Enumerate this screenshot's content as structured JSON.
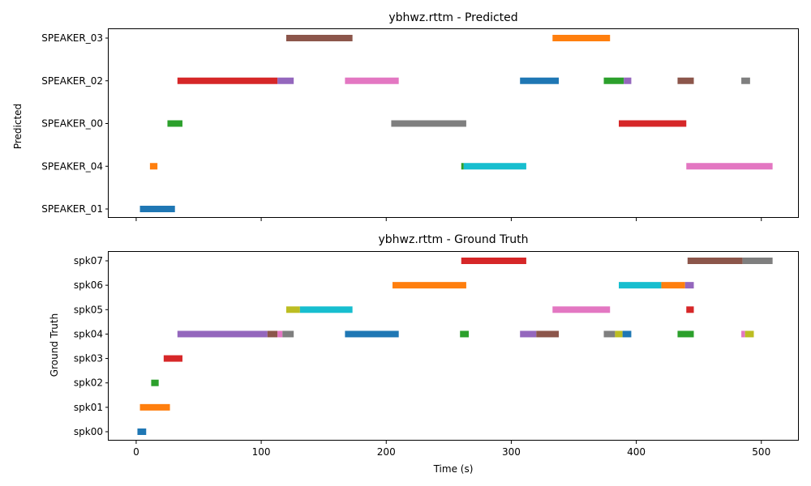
{
  "chart_data": [
    {
      "type": "timeline",
      "title": "ybhwz.rttm - Predicted",
      "ylabel": "Predicted",
      "xlabel": "",
      "xlim": [
        -22,
        530
      ],
      "show_x_tick_labels": false,
      "x_ticks": [
        0,
        100,
        200,
        300,
        400,
        500
      ],
      "rows": [
        "SPEAKER_01",
        "SPEAKER_04",
        "SPEAKER_00",
        "SPEAKER_02",
        "SPEAKER_03"
      ],
      "segments": [
        {
          "row": "SPEAKER_03",
          "start": 120,
          "end": 173,
          "color": "#8c564b"
        },
        {
          "row": "SPEAKER_03",
          "start": 333,
          "end": 379,
          "color": "#ff7f0e"
        },
        {
          "row": "SPEAKER_02",
          "start": 33,
          "end": 113,
          "color": "#d62728"
        },
        {
          "row": "SPEAKER_02",
          "start": 113,
          "end": 126,
          "color": "#9467bd"
        },
        {
          "row": "SPEAKER_02",
          "start": 167,
          "end": 210,
          "color": "#e377c2"
        },
        {
          "row": "SPEAKER_02",
          "start": 307,
          "end": 338,
          "color": "#1f77b4"
        },
        {
          "row": "SPEAKER_02",
          "start": 374,
          "end": 390,
          "color": "#2ca02c"
        },
        {
          "row": "SPEAKER_02",
          "start": 390,
          "end": 396,
          "color": "#9467bd"
        },
        {
          "row": "SPEAKER_02",
          "start": 433,
          "end": 446,
          "color": "#8c564b"
        },
        {
          "row": "SPEAKER_02",
          "start": 484,
          "end": 491,
          "color": "#7f7f7f"
        },
        {
          "row": "SPEAKER_00",
          "start": 25,
          "end": 37,
          "color": "#2ca02c"
        },
        {
          "row": "SPEAKER_00",
          "start": 204,
          "end": 264,
          "color": "#7f7f7f"
        },
        {
          "row": "SPEAKER_00",
          "start": 386,
          "end": 440,
          "color": "#d62728"
        },
        {
          "row": "SPEAKER_04",
          "start": 11,
          "end": 17,
          "color": "#ff7f0e"
        },
        {
          "row": "SPEAKER_04",
          "start": 260,
          "end": 262,
          "color": "#2ca02c"
        },
        {
          "row": "SPEAKER_04",
          "start": 262,
          "end": 312,
          "color": "#17becf"
        },
        {
          "row": "SPEAKER_04",
          "start": 440,
          "end": 509,
          "color": "#e377c2"
        },
        {
          "row": "SPEAKER_01",
          "start": 3,
          "end": 31,
          "color": "#1f77b4"
        }
      ]
    },
    {
      "type": "timeline",
      "title": "ybhwz.rttm - Ground Truth",
      "ylabel": "Ground Truth",
      "xlabel": "Time (s)",
      "xlim": [
        -22,
        530
      ],
      "show_x_tick_labels": true,
      "x_ticks": [
        0,
        100,
        200,
        300,
        400,
        500
      ],
      "rows": [
        "spk00",
        "spk01",
        "spk02",
        "spk03",
        "spk04",
        "spk05",
        "spk06",
        "spk07"
      ],
      "segments": [
        {
          "row": "spk07",
          "start": 260,
          "end": 312,
          "color": "#d62728"
        },
        {
          "row": "spk07",
          "start": 441,
          "end": 485,
          "color": "#8c564b"
        },
        {
          "row": "spk07",
          "start": 485,
          "end": 509,
          "color": "#7f7f7f"
        },
        {
          "row": "spk06",
          "start": 205,
          "end": 264,
          "color": "#ff7f0e"
        },
        {
          "row": "spk06",
          "start": 386,
          "end": 420,
          "color": "#17becf"
        },
        {
          "row": "spk06",
          "start": 420,
          "end": 439,
          "color": "#ff7f0e"
        },
        {
          "row": "spk06",
          "start": 439,
          "end": 446,
          "color": "#9467bd"
        },
        {
          "row": "spk05",
          "start": 120,
          "end": 131,
          "color": "#bcbd22"
        },
        {
          "row": "spk05",
          "start": 131,
          "end": 173,
          "color": "#17becf"
        },
        {
          "row": "spk05",
          "start": 333,
          "end": 379,
          "color": "#e377c2"
        },
        {
          "row": "spk05",
          "start": 440,
          "end": 446,
          "color": "#d62728"
        },
        {
          "row": "spk04",
          "start": 33,
          "end": 105,
          "color": "#9467bd"
        },
        {
          "row": "spk04",
          "start": 105,
          "end": 113,
          "color": "#8c564b"
        },
        {
          "row": "spk04",
          "start": 113,
          "end": 117,
          "color": "#e377c2"
        },
        {
          "row": "spk04",
          "start": 117,
          "end": 126,
          "color": "#7f7f7f"
        },
        {
          "row": "spk04",
          "start": 167,
          "end": 210,
          "color": "#1f77b4"
        },
        {
          "row": "spk04",
          "start": 259,
          "end": 266,
          "color": "#2ca02c"
        },
        {
          "row": "spk04",
          "start": 307,
          "end": 320,
          "color": "#9467bd"
        },
        {
          "row": "spk04",
          "start": 320,
          "end": 338,
          "color": "#8c564b"
        },
        {
          "row": "spk04",
          "start": 374,
          "end": 383,
          "color": "#7f7f7f"
        },
        {
          "row": "spk04",
          "start": 383,
          "end": 389,
          "color": "#bcbd22"
        },
        {
          "row": "spk04",
          "start": 389,
          "end": 396,
          "color": "#1f77b4"
        },
        {
          "row": "spk04",
          "start": 433,
          "end": 446,
          "color": "#2ca02c"
        },
        {
          "row": "spk04",
          "start": 484,
          "end": 487,
          "color": "#e377c2"
        },
        {
          "row": "spk04",
          "start": 487,
          "end": 494,
          "color": "#bcbd22"
        },
        {
          "row": "spk03",
          "start": 22,
          "end": 37,
          "color": "#d62728"
        },
        {
          "row": "spk02",
          "start": 12,
          "end": 18,
          "color": "#2ca02c"
        },
        {
          "row": "spk01",
          "start": 3,
          "end": 27,
          "color": "#ff7f0e"
        },
        {
          "row": "spk00",
          "start": 1,
          "end": 8,
          "color": "#1f77b4"
        }
      ]
    }
  ]
}
